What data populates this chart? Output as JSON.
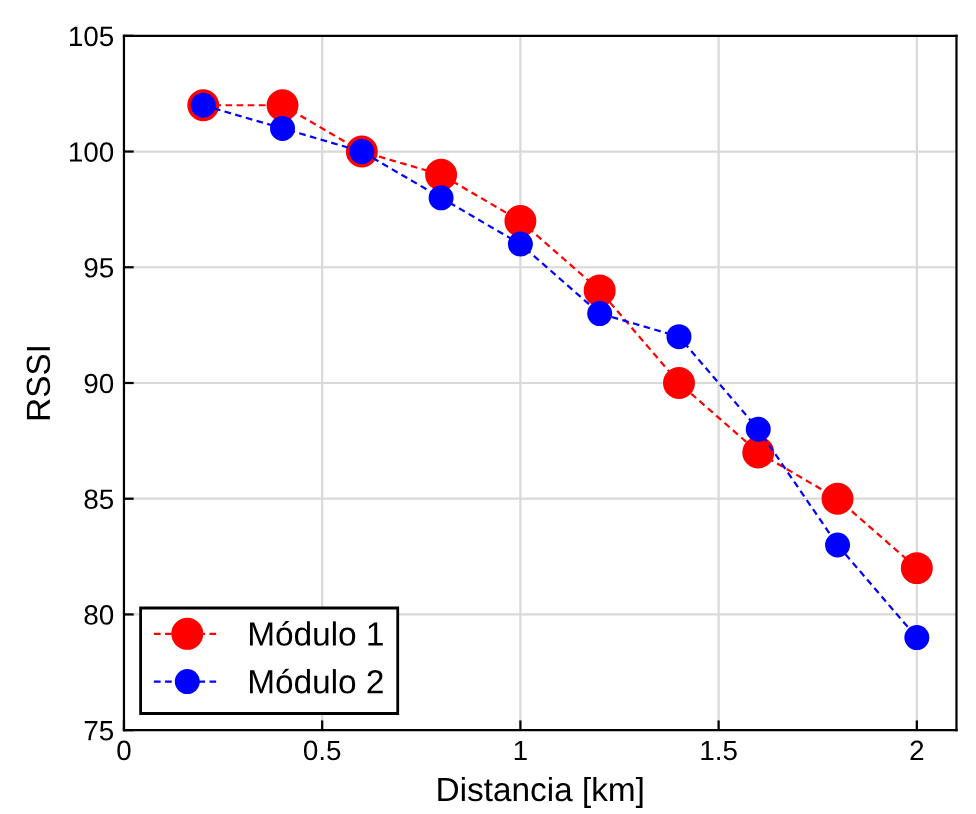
{
  "chart_data": {
    "type": "line",
    "xlabel": "Distancia [km]",
    "ylabel": "RSSI",
    "x": [
      0.2,
      0.4,
      0.6,
      0.8,
      1.0,
      1.2,
      1.4,
      1.6,
      1.8,
      2.0
    ],
    "series": [
      {
        "name": "Módulo 1",
        "color": "#ff0000",
        "values": [
          102,
          102,
          100,
          99,
          97,
          94,
          90,
          87,
          85,
          82
        ]
      },
      {
        "name": "Módulo 2",
        "color": "#0000ff",
        "values": [
          102,
          101,
          100,
          98,
          96,
          93,
          92,
          88,
          83,
          79
        ]
      }
    ],
    "xlim": [
      0,
      2.1
    ],
    "xticks": [
      0,
      0.5,
      1,
      1.5,
      2
    ],
    "ylim": [
      75,
      105
    ],
    "yticks": [
      75,
      80,
      85,
      90,
      95,
      100,
      105
    ],
    "grid": true,
    "legend": "bottom left",
    "marker": "circle",
    "line_style": "dashed"
  }
}
